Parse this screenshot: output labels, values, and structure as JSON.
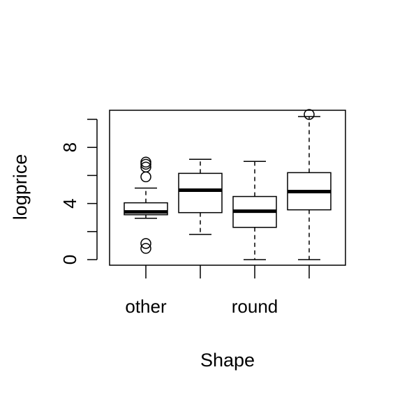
{
  "chart_data": {
    "type": "boxplot",
    "title": "",
    "xlabel": "Shape",
    "ylabel": "logprice",
    "ylim": [
      0,
      10.4
    ],
    "y_ticks": [
      0,
      4,
      8
    ],
    "y_minor_ticks": [
      2,
      6,
      10
    ],
    "x_tick_labels": [
      "other",
      "",
      "round",
      ""
    ],
    "grid": false,
    "legend": "none",
    "boxes": [
      {
        "min": 2.95,
        "q1": 3.2,
        "median": 3.4,
        "q3": 4.05,
        "max": 5.1,
        "outliers": [
          5.9,
          6.6,
          6.8,
          6.95,
          1.15,
          0.8
        ]
      },
      {
        "min": 1.8,
        "q1": 3.35,
        "median": 4.95,
        "q3": 6.15,
        "max": 7.15,
        "outliers": []
      },
      {
        "min": 0.0,
        "q1": 2.3,
        "median": 3.45,
        "q3": 4.5,
        "max": 7.0,
        "outliers": []
      },
      {
        "min": 0.0,
        "q1": 3.55,
        "median": 4.85,
        "q3": 6.2,
        "max": 10.2,
        "outliers": [
          10.35
        ]
      }
    ]
  }
}
